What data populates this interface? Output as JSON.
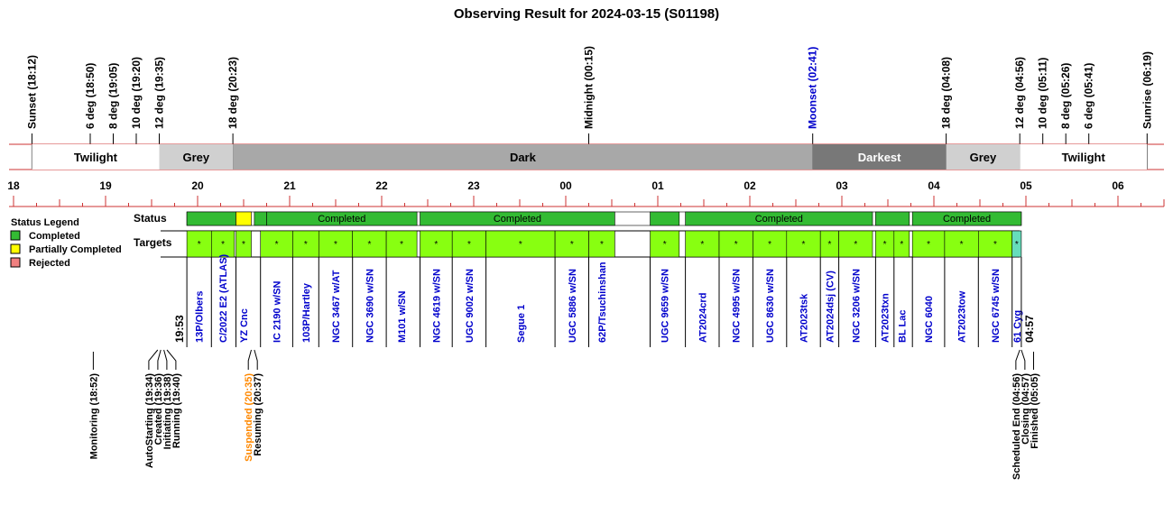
{
  "chart_data": {
    "type": "timeline",
    "title": "Observing Result for 2024-03-15 (S01198)",
    "x_axis": {
      "unit": "hour",
      "range": [
        "18:00",
        "06:45"
      ],
      "tick_labels": [
        "18",
        "19",
        "20",
        "21",
        "22",
        "23",
        "00",
        "01",
        "02",
        "03",
        "04",
        "05",
        "06"
      ]
    },
    "events": [
      {
        "label": "Sunset (18:12)",
        "time": "18:12",
        "color": "#000000"
      },
      {
        "label": "6 deg (18:50)",
        "time": "18:50",
        "color": "#000000"
      },
      {
        "label": "8 deg (19:05)",
        "time": "19:05",
        "color": "#000000"
      },
      {
        "label": "10 deg (19:20)",
        "time": "19:20",
        "color": "#000000"
      },
      {
        "label": "12 deg (19:35)",
        "time": "19:35",
        "color": "#000000"
      },
      {
        "label": "18 deg (20:23)",
        "time": "20:23",
        "color": "#000000"
      },
      {
        "label": "Midnight (00:15)",
        "time": "00:15",
        "color": "#000000"
      },
      {
        "label": "Moonset (02:41)",
        "time": "02:41",
        "color": "#0000cc"
      },
      {
        "label": "18 deg (04:08)",
        "time": "04:08",
        "color": "#000000"
      },
      {
        "label": "12 deg (04:56)",
        "time": "04:56",
        "color": "#000000"
      },
      {
        "label": "10 deg (05:11)",
        "time": "05:11",
        "color": "#000000"
      },
      {
        "label": "8 deg (05:26)",
        "time": "05:26",
        "color": "#000000"
      },
      {
        "label": "6 deg (05:41)",
        "time": "05:41",
        "color": "#000000"
      },
      {
        "label": "Sunrise (06:19)",
        "time": "06:19",
        "color": "#000000"
      }
    ],
    "sky_bands": [
      {
        "label": "Twilight",
        "start": "18:12",
        "end": "19:35",
        "fill": "#ffffff",
        "text_color": "#000000"
      },
      {
        "label": "Grey",
        "start": "19:35",
        "end": "20:23",
        "fill": "#d0d0d0",
        "text_color": "#000000"
      },
      {
        "label": "Dark",
        "start": "20:23",
        "end": "02:41",
        "fill": "#a8a8a8",
        "text_color": "#000000"
      },
      {
        "label": "Darkest",
        "start": "02:41",
        "end": "04:08",
        "fill": "#787878",
        "text_color": "#ffffff"
      },
      {
        "label": "Grey",
        "start": "04:08",
        "end": "04:56",
        "fill": "#d0d0d0",
        "text_color": "#000000"
      },
      {
        "label": "Twilight",
        "start": "04:56",
        "end": "06:19",
        "fill": "#ffffff",
        "text_color": "#000000"
      }
    ],
    "status_row_label": "Status",
    "targets_row_label": "Targets",
    "status_legend": {
      "title": "Status Legend",
      "items": [
        {
          "label": "Completed",
          "color": "#33bb33"
        },
        {
          "label": "Partially Completed",
          "color": "#ffff00"
        },
        {
          "label": "Rejected",
          "color": "#f08080"
        }
      ]
    },
    "status_blocks": [
      {
        "start": "19:53",
        "end": "20:25",
        "status": "Completed",
        "label": ""
      },
      {
        "start": "20:25",
        "end": "20:35",
        "status": "Partially Completed",
        "label": ""
      },
      {
        "start": "20:37",
        "end": "20:45",
        "status": "Completed",
        "label": ""
      },
      {
        "start": "20:45",
        "end": "22:23",
        "status": "Completed",
        "label": "Completed"
      },
      {
        "start": "22:25",
        "end": "00:32",
        "status": "Completed",
        "label": "Completed"
      },
      {
        "start": "00:55",
        "end": "01:14",
        "status": "Completed",
        "label": ""
      },
      {
        "start": "01:18",
        "end": "03:20",
        "status": "Completed",
        "label": "Completed"
      },
      {
        "start": "03:22",
        "end": "03:44",
        "status": "Completed",
        "label": ""
      },
      {
        "start": "03:46",
        "end": "04:57",
        "status": "Completed",
        "label": "Completed"
      }
    ],
    "targets": [
      {
        "name": "13P/Olbers",
        "start": "19:53",
        "end": "20:09"
      },
      {
        "name": "C/2022 E2 (ATLAS)",
        "start": "20:09",
        "end": "20:24"
      },
      {
        "name": "YZ Cnc",
        "start": "20:25",
        "end": "20:35"
      },
      {
        "name": "IC 2190 w/SN",
        "start": "20:41",
        "end": "21:02"
      },
      {
        "name": "103P/Hartley",
        "start": "21:02",
        "end": "21:19"
      },
      {
        "name": "NGC 3467 w/AT",
        "start": "21:19",
        "end": "21:41"
      },
      {
        "name": "NGC 3690 w/SN",
        "start": "21:41",
        "end": "22:03"
      },
      {
        "name": "M101 w/SN",
        "start": "22:03",
        "end": "22:23"
      },
      {
        "name": "NGC 4619 w/SN",
        "start": "22:25",
        "end": "22:46"
      },
      {
        "name": "UGC 9002 w/SN",
        "start": "22:46",
        "end": "23:08"
      },
      {
        "name": "Segue 1",
        "start": "23:08",
        "end": "23:53"
      },
      {
        "name": "UGC 5886 w/SN",
        "start": "23:53",
        "end": "00:15"
      },
      {
        "name": "62P/Tsuchinshan",
        "start": "00:15",
        "end": "00:32"
      },
      {
        "name": "UGC 9659 w/SN",
        "start": "00:55",
        "end": "01:14"
      },
      {
        "name": "AT2024crd",
        "start": "01:18",
        "end": "01:40"
      },
      {
        "name": "NGC 4995 w/SN",
        "start": "01:40",
        "end": "02:02"
      },
      {
        "name": "UGC 8630 w/SN",
        "start": "02:02",
        "end": "02:24"
      },
      {
        "name": "AT2023tsk",
        "start": "02:24",
        "end": "02:46"
      },
      {
        "name": "AT2024dsj (CV)",
        "start": "02:46",
        "end": "02:58"
      },
      {
        "name": "NGC 3206 w/SN",
        "start": "02:58",
        "end": "03:20"
      },
      {
        "name": "AT2023txn",
        "start": "03:22",
        "end": "03:34"
      },
      {
        "name": "BL Lac",
        "start": "03:34",
        "end": "03:44"
      },
      {
        "name": "NGC 6040",
        "start": "03:46",
        "end": "04:07"
      },
      {
        "name": "AT2023tow",
        "start": "04:07",
        "end": "04:29"
      },
      {
        "name": "NGC 6745 w/SN",
        "start": "04:29",
        "end": "04:51"
      },
      {
        "name": "61 Cyg",
        "start": "04:51",
        "end": "04:57"
      }
    ],
    "target_block_marker": "*",
    "target_colors": {
      "default": "#88ff11",
      "last": "#66ddbb"
    },
    "start_time_label": "19:53",
    "end_time_label": "04:57",
    "process_events": [
      {
        "label": "Monitoring (18:52)",
        "time": "18:52",
        "color": "#000000"
      },
      {
        "label": "AutoStarting (19:34)",
        "time": "19:34",
        "color": "#000000"
      },
      {
        "label": "Created (19:36)",
        "time": "19:36",
        "color": "#000000"
      },
      {
        "label": "Initiating (19:38)",
        "time": "19:38",
        "color": "#000000"
      },
      {
        "label": "Running (19:40)",
        "time": "19:40",
        "color": "#000000"
      },
      {
        "label": "Suspended (20:35)",
        "time": "20:35",
        "color": "#ff8800"
      },
      {
        "label": "Resuming (20:37)",
        "time": "20:37",
        "color": "#000000"
      },
      {
        "label": "Scheduled End (04:56)",
        "time": "04:56",
        "color": "#000000"
      },
      {
        "label": "Closing (04:57)",
        "time": "04:57",
        "color": "#000000"
      },
      {
        "label": "Finished (05:05)",
        "time": "05:05",
        "color": "#000000"
      }
    ]
  }
}
